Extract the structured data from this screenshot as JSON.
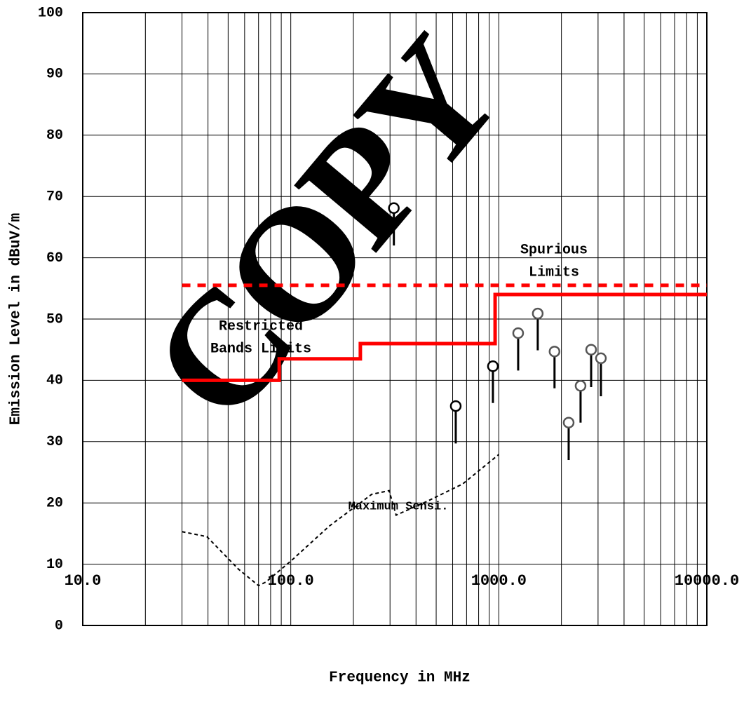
{
  "chart_data": {
    "type": "line",
    "xlabel": "Frequency in MHz",
    "ylabel": "Emission Level in dBuV/m",
    "xscale": "log",
    "xlim": [
      10,
      10000
    ],
    "ylim": [
      0,
      100
    ],
    "xticks": [
      {
        "value": 10,
        "label": "10.0"
      },
      {
        "value": 100,
        "label": "100.0"
      },
      {
        "value": 1000,
        "label": "1000.0"
      },
      {
        "value": 10000,
        "label": "10000.0"
      }
    ],
    "xminorticks": [
      20,
      30,
      40,
      50,
      60,
      70,
      80,
      90,
      200,
      300,
      400,
      500,
      600,
      700,
      800,
      900,
      2000,
      3000,
      4000,
      5000,
      6000,
      7000,
      8000,
      9000
    ],
    "yticks": [
      0,
      10,
      20,
      30,
      40,
      50,
      60,
      70,
      80,
      90,
      100
    ],
    "grid": true,
    "watermark": "COPY",
    "series": [
      {
        "kind": "step",
        "color": "#ff0000",
        "dash": false,
        "x": [
          30,
          88,
          88,
          216,
          216,
          960,
          960,
          10000
        ],
        "values": [
          40,
          40,
          43.5,
          43.5,
          46,
          46,
          54,
          54
        ]
      },
      {
        "kind": "line",
        "color": "#ff0000",
        "dash": true,
        "x": [
          30,
          10000
        ],
        "values": [
          55.5,
          55.5
        ]
      },
      {
        "kind": "line",
        "color": "#000000",
        "dash": true,
        "thin": true,
        "x": [
          30,
          39.5,
          56,
          70,
          76,
          100,
          153,
          245,
          297,
          321,
          455,
          671,
          1000
        ],
        "values": [
          15.3,
          14.5,
          9.2,
          6.5,
          7.1,
          10.5,
          16.2,
          21.4,
          22,
          18,
          20.3,
          23.1,
          27.9
        ]
      },
      {
        "kind": "stem",
        "x": [
          313,
          621,
          937,
          1239,
          1539,
          1853,
          2167,
          2472,
          2779,
          3097
        ],
        "values": [
          68.1,
          35.8,
          42.3,
          47.7,
          50.9,
          44.7,
          33.1,
          39.1,
          45.0,
          43.6
        ],
        "low": [
          62.0,
          29.7,
          36.3,
          41.6,
          44.9,
          38.7,
          27.0,
          33.1,
          38.9,
          37.4
        ],
        "colors": [
          "#000000",
          "#000000",
          "#000000",
          "#555555",
          "#555555",
          "#555555",
          "#555555",
          "#555555",
          "#555555",
          "#555555"
        ]
      }
    ],
    "annotations": [
      {
        "lines": [
          "Spurious",
          "Limits"
        ]
      },
      {
        "lines": [
          "Restricted",
          "Bands Limits"
        ]
      },
      {
        "lines": [
          "Maximum Sensi."
        ]
      }
    ]
  }
}
